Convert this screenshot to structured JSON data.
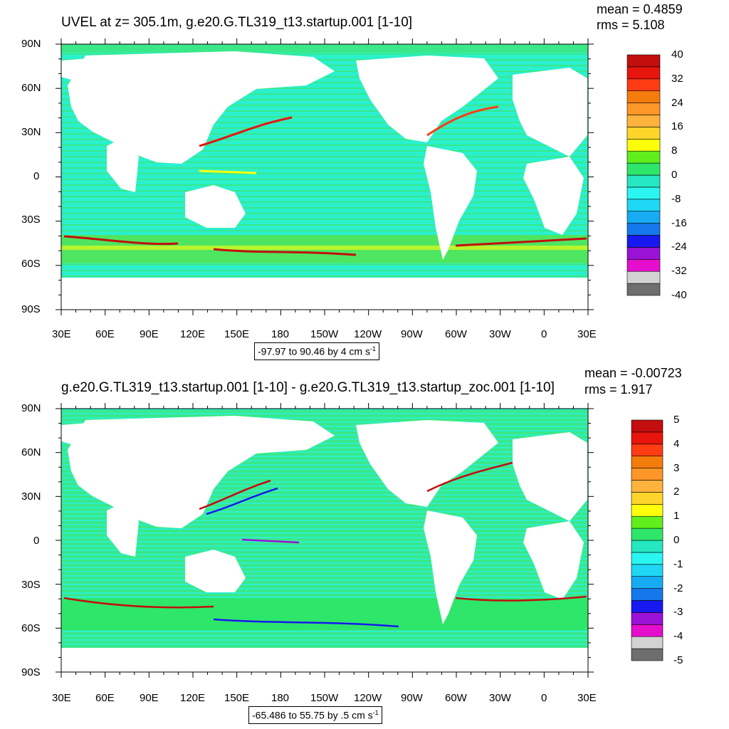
{
  "panels": [
    {
      "title": "UVEL at z= 305.1m, g.e20.G.TL319_t13.startup.001 [1-10]",
      "mean": "mean = 0.4859",
      "rms": "rms = 5.108",
      "range_text": "-97.97 to 90.46 by 4 cm s",
      "range_unit_sup": "-1",
      "lat_labels": [
        "90N",
        "60N",
        "30N",
        "0",
        "30S",
        "60S",
        "90S"
      ],
      "lon_labels": [
        "30E",
        "60E",
        "90E",
        "120E",
        "150E",
        "180",
        "150W",
        "120W",
        "90W",
        "60W",
        "30W",
        "0",
        "30E"
      ],
      "colorbar_labels": [
        "40",
        "32",
        "24",
        "16",
        "8",
        "0",
        "-8",
        "-16",
        "-24",
        "-32",
        "-40"
      ]
    },
    {
      "title": "g.e20.G.TL319_t13.startup.001 [1-10] - g.e20.G.TL319_t13.startup_zoc.001 [1-10]",
      "mean": "mean = -0.00723",
      "rms": "rms = 1.917",
      "range_text": "-65.486 to 55.75 by .5 cm s",
      "range_unit_sup": "-1",
      "lat_labels": [
        "90N",
        "60N",
        "30N",
        "0",
        "30S",
        "60S",
        "90S"
      ],
      "lon_labels": [
        "30E",
        "60E",
        "90E",
        "120E",
        "150E",
        "180",
        "150W",
        "120W",
        "90W",
        "60W",
        "30W",
        "0",
        "30E"
      ],
      "colorbar_labels": [
        "5",
        "4",
        "3",
        "2",
        "1",
        "0",
        "-1",
        "-2",
        "-3",
        "-4",
        "-5"
      ]
    }
  ],
  "colors": {
    "palette": [
      "#6e6e6e",
      "#d2d2d2",
      "#e60ecd",
      "#9a12d6",
      "#1818f0",
      "#1478ea",
      "#16abf2",
      "#1ed8f5",
      "#2af5f0",
      "#25e8c2",
      "#2ee66a",
      "#60ee1c",
      "#ffff0a",
      "#ffd52c",
      "#ffb33c",
      "#ff9628",
      "#f47c0c",
      "#ff3c14",
      "#e8140e",
      "#c20e0e"
    ],
    "ocean_base": "#2af0cd",
    "ocean_mid": "#3ae88a",
    "land": "#ffffff"
  }
}
